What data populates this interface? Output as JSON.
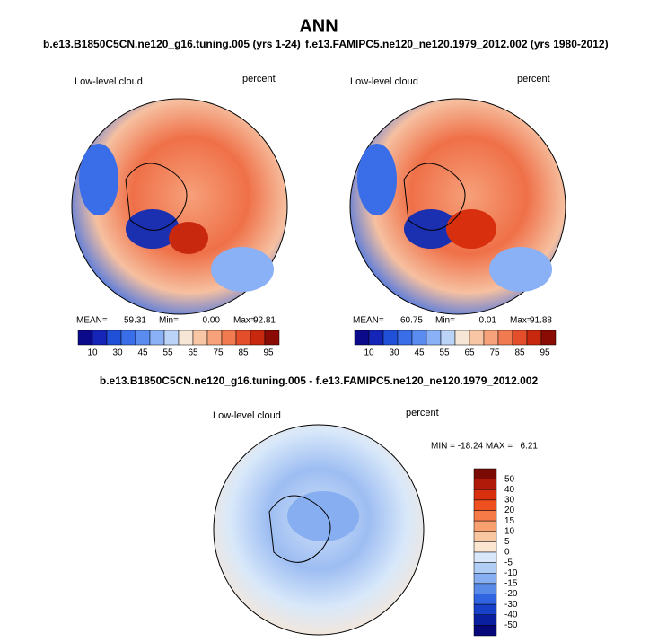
{
  "title": "ANN",
  "panels": [
    {
      "header": "b.e13.B1850C5CN.ne120_g16.tuning.005 (yrs 1-24)",
      "left_label": "Low-level cloud",
      "right_label": "percent",
      "stats": {
        "mean_label": "MEAN=",
        "mean": "59.31",
        "min_label": "Min=",
        "min": "0.00",
        "max_label": "Max=",
        "max": "92.81"
      }
    },
    {
      "header": "f.e13.FAMIPC5.ne120_ne120.1979_2012.002 (yrs 1980-2012)",
      "left_label": "Low-level cloud",
      "right_label": "percent",
      "stats": {
        "mean_label": "MEAN=",
        "mean": "60.75",
        "min_label": "Min=",
        "min": "0.01",
        "max_label": "Max=",
        "max": "91.88"
      }
    }
  ],
  "colorbar": {
    "labels": [
      "10",
      "30",
      "45",
      "55",
      "65",
      "75",
      "85",
      "95"
    ],
    "colors": [
      "#0a0a8a",
      "#1525b8",
      "#2050d8",
      "#3a6ee8",
      "#5a8cf0",
      "#8ab0f5",
      "#bcd3f8",
      "#f6e6d6",
      "#f8c6a4",
      "#f7a27a",
      "#f27a50",
      "#e54e2a",
      "#c8280e",
      "#8a0a04"
    ]
  },
  "difference": {
    "header": "b.e13.B1850C5CN.ne120_g16.tuning.005 - f.e13.FAMIPC5.ne120_ne120.1979_2012.002",
    "left_label": "Low-level cloud",
    "right_label": "percent",
    "minmax": "MIN = -18.24 MAX =   6.21",
    "colorbar": {
      "labels": [
        "50",
        "40",
        "30",
        "20",
        "15",
        "10",
        "5",
        "0",
        "-5",
        "-10",
        "-15",
        "-20",
        "-30",
        "-40",
        "-50"
      ],
      "colors": [
        "#7a0a04",
        "#b01a08",
        "#d8300e",
        "#ee5020",
        "#f57a48",
        "#f8a070",
        "#f9c6a2",
        "#fbe6d2",
        "#d8e8fa",
        "#b0cdf6",
        "#86aef0",
        "#5a8ae8",
        "#3064e0",
        "#1840c8",
        "#0a1ea0",
        "#06087a"
      ]
    }
  }
}
